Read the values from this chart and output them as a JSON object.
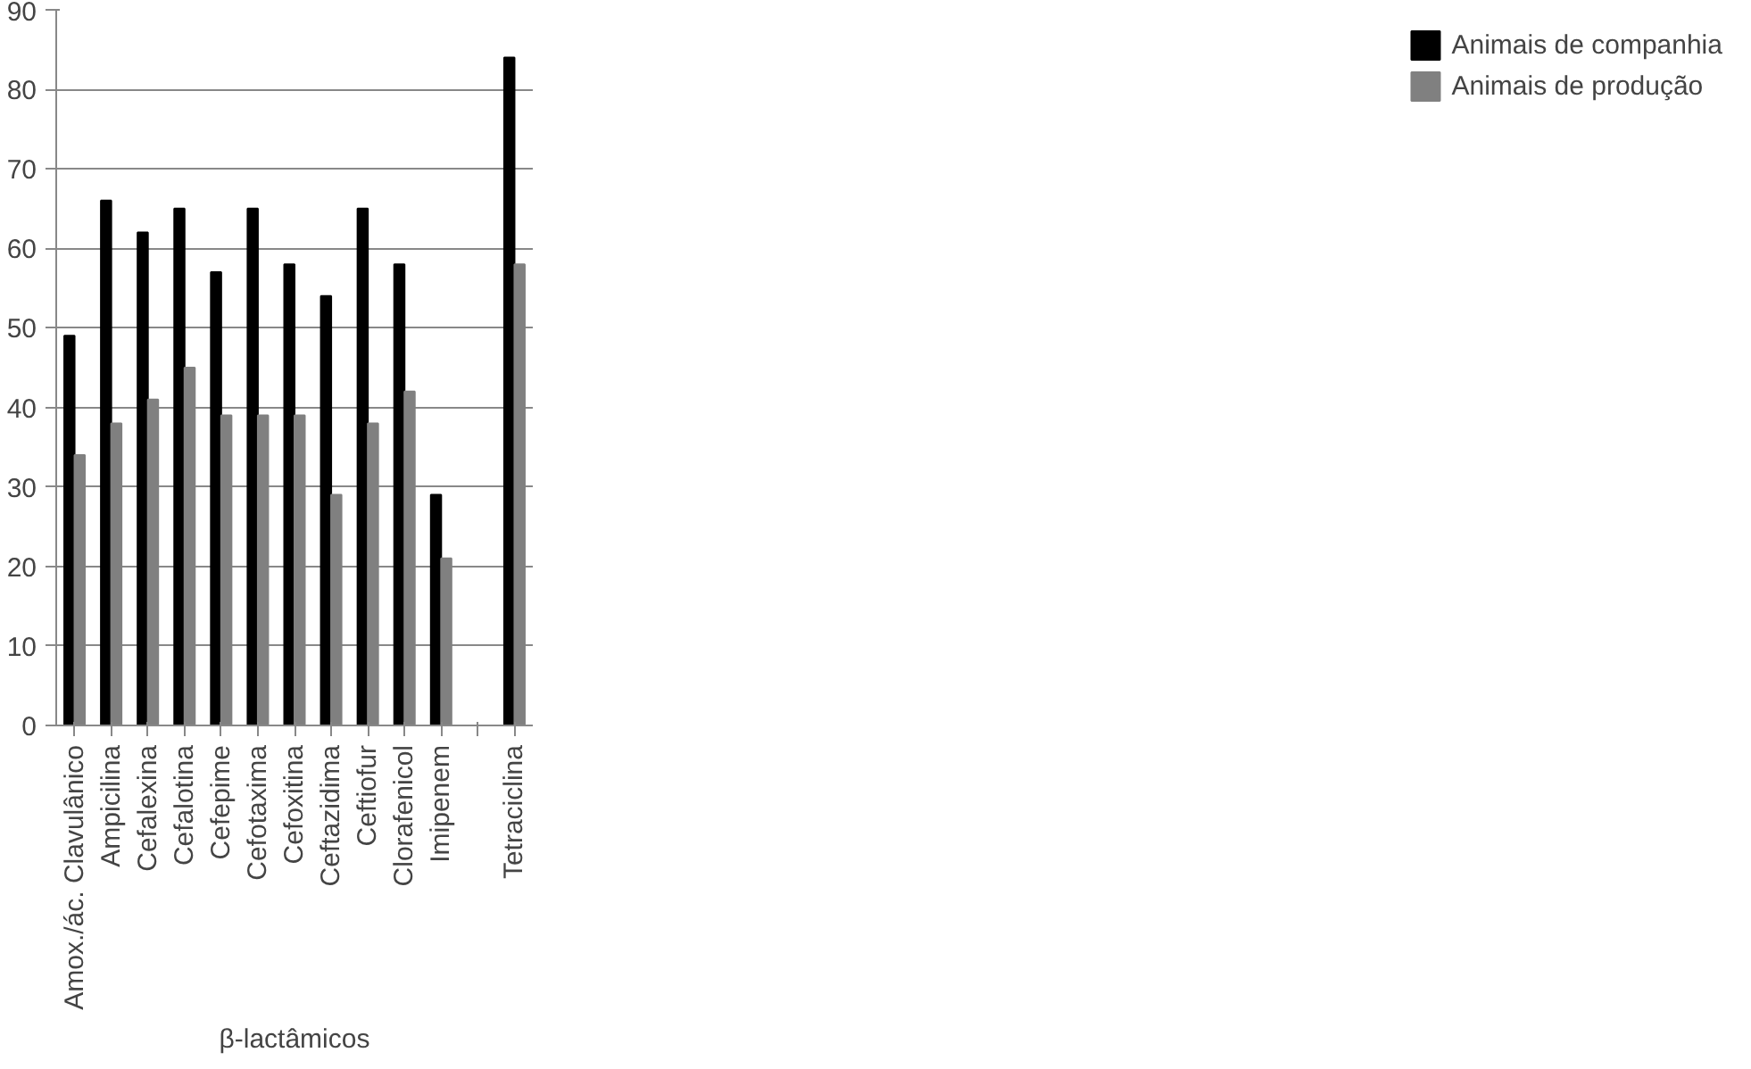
{
  "chart_data": {
    "type": "bar",
    "xlabel": "β-lactâmicos",
    "categories": [
      "Amox./ác. Clavulânico",
      "Ampicilina",
      "Cefalexina",
      "Cefalotina",
      "Cefepime",
      "Cefotaxima",
      "Cefoxitina",
      "Ceftazidima",
      "Ceftiofur",
      "Clorafenicol",
      "Imipenem",
      null,
      "Tetraciclina"
    ],
    "series": [
      {
        "name": "Animais de companhia",
        "color": "#000000",
        "values": [
          49,
          66,
          62,
          65,
          57,
          65,
          58,
          54,
          65,
          58,
          29,
          null,
          84
        ]
      },
      {
        "name": "Animais de produção",
        "color": "#808080",
        "values": [
          34,
          38,
          41,
          45,
          39,
          39,
          39,
          29,
          38,
          42,
          21,
          null,
          58
        ]
      }
    ],
    "ylim": [
      0,
      90
    ],
    "yticks": [
      0,
      10,
      20,
      30,
      40,
      50,
      60,
      70,
      80,
      90
    ],
    "grid": "y",
    "legend": "right"
  }
}
